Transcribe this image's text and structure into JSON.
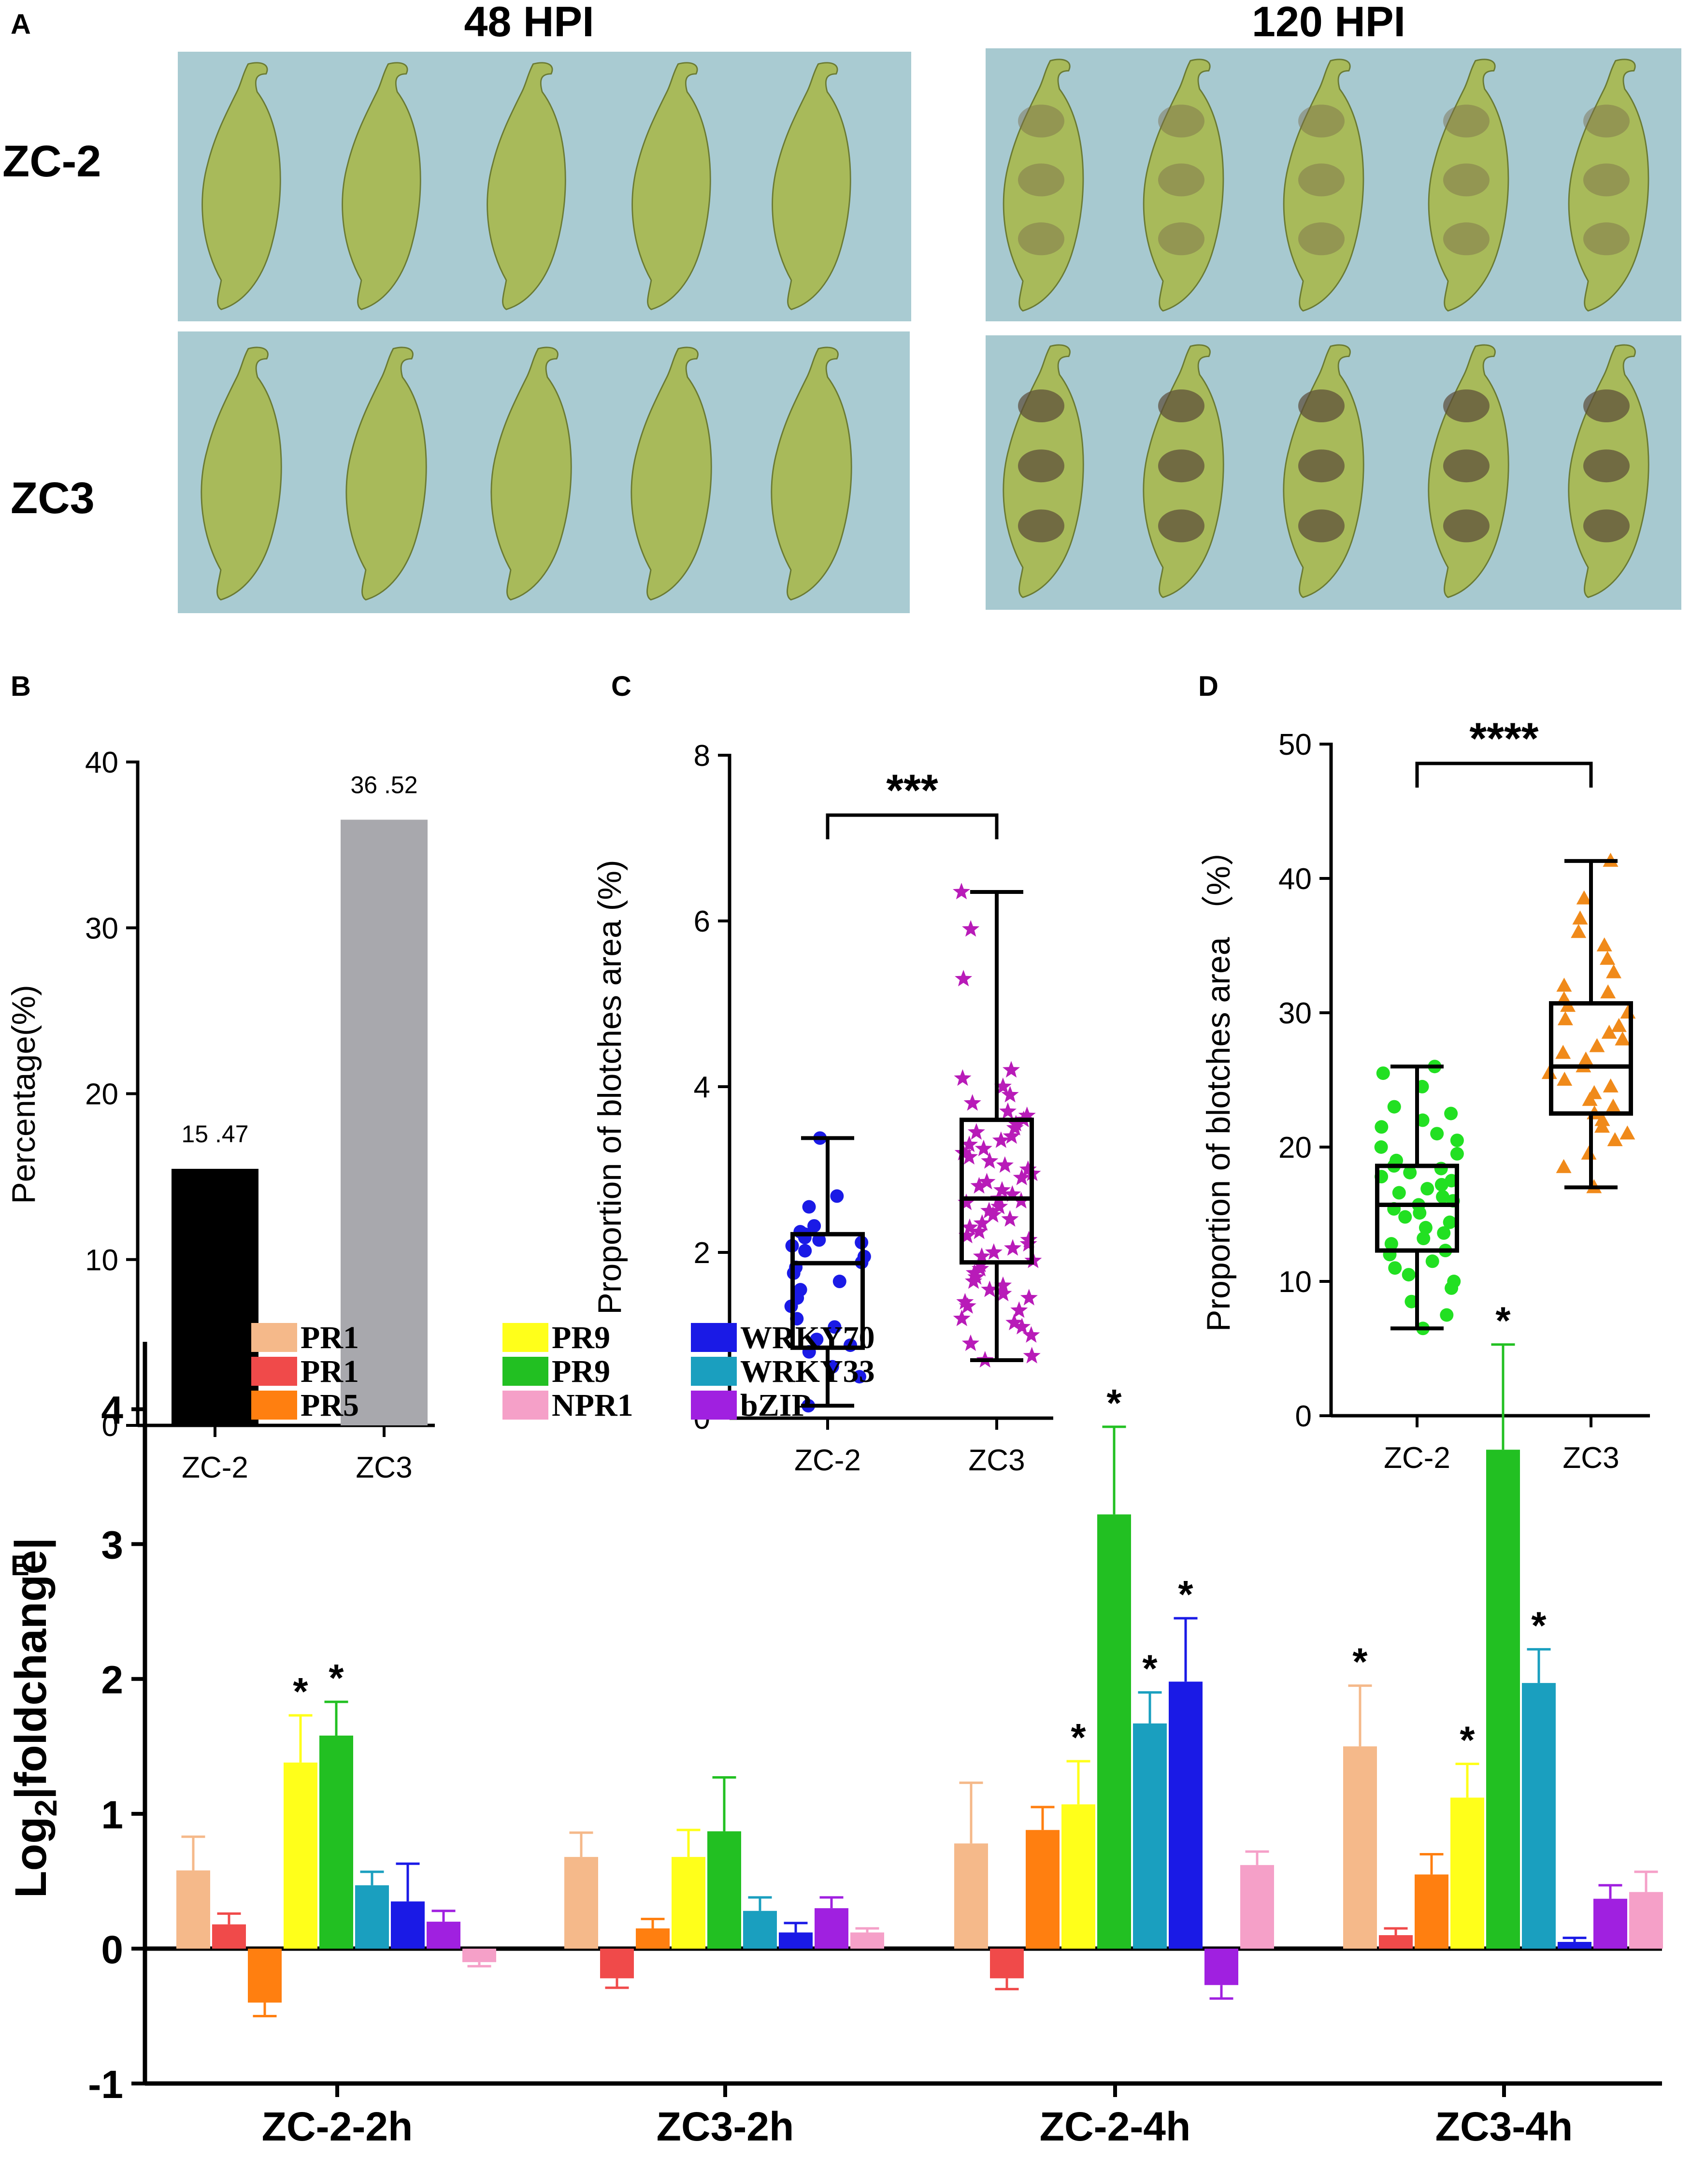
{
  "panel_a": {
    "label": "A",
    "col_titles": [
      "48 HPI",
      "120 HPI"
    ],
    "row_labels": [
      "ZC-2",
      "ZC3"
    ]
  },
  "chart_data": [
    {
      "panel": "B",
      "type": "bar",
      "categories": [
        "ZC-2",
        "ZC3"
      ],
      "values": [
        15.47,
        36.52
      ],
      "value_labels": [
        "15 .47",
        "36 .52"
      ],
      "colors": [
        "#000000",
        "#a8a8ad"
      ],
      "ylabel": "Percentage(%)",
      "ylim": [
        0,
        40
      ],
      "yticks": [
        0,
        10,
        20,
        30,
        40
      ]
    },
    {
      "panel": "C",
      "type": "scatter",
      "subtype": "box-whisker",
      "categories": [
        "ZC-2",
        "ZC3"
      ],
      "ylabel": "Proportion of blotches area (%)",
      "ylim": [
        0,
        8
      ],
      "yticks": [
        0,
        2,
        4,
        6,
        8
      ],
      "boxes": [
        {
          "name": "ZC-2",
          "min": 0.15,
          "q1": 0.85,
          "median": 1.87,
          "q3": 2.22,
          "max": 3.38,
          "color": "#1a1ae6",
          "marker": "circle",
          "points": [
            0.15,
            0.5,
            0.62,
            0.8,
            0.88,
            0.95,
            1.1,
            1.2,
            1.35,
            1.45,
            1.55,
            1.65,
            1.75,
            1.82,
            1.88,
            1.95,
            2.02,
            2.08,
            2.12,
            2.15,
            2.18,
            2.22,
            2.25,
            2.32,
            2.55,
            2.68,
            3.38
          ]
        },
        {
          "name": "ZC3",
          "min": 0.7,
          "q1": 1.88,
          "median": 2.65,
          "q3": 3.6,
          "max": 6.35,
          "color": "#b81bb8",
          "marker": "star",
          "points": [
            0.7,
            0.75,
            0.9,
            1.0,
            1.1,
            1.15,
            1.2,
            1.3,
            1.35,
            1.4,
            1.45,
            1.5,
            1.55,
            1.6,
            1.65,
            1.7,
            1.75,
            1.8,
            1.85,
            1.9,
            1.95,
            2.0,
            2.05,
            2.1,
            2.15,
            2.2,
            2.25,
            2.3,
            2.35,
            2.4,
            2.45,
            2.5,
            2.55,
            2.6,
            2.62,
            2.65,
            2.7,
            2.75,
            2.8,
            2.85,
            2.9,
            2.95,
            3.0,
            3.05,
            3.1,
            3.15,
            3.2,
            3.25,
            3.3,
            3.35,
            3.4,
            3.45,
            3.5,
            3.55,
            3.6,
            3.65,
            3.7,
            3.8,
            3.9,
            4.0,
            4.1,
            4.2,
            5.3,
            5.9,
            6.35
          ]
        }
      ],
      "significance": "***"
    },
    {
      "panel": "D",
      "type": "scatter",
      "subtype": "box-whisker",
      "categories": [
        "ZC-2",
        "ZC3"
      ],
      "ylabel": "Proportion of blotches area （%）",
      "ylim": [
        0,
        50
      ],
      "yticks": [
        0,
        10,
        20,
        30,
        40,
        50
      ],
      "boxes": [
        {
          "name": "ZC-2",
          "min": 6.5,
          "q1": 12.3,
          "median": 15.7,
          "q3": 18.6,
          "max": 26.0,
          "color": "#22e022",
          "marker": "circle",
          "points": [
            6.5,
            7.5,
            8.5,
            9.5,
            10.0,
            10.5,
            11.0,
            11.5,
            12.0,
            12.3,
            12.8,
            13.2,
            13.6,
            14.0,
            14.4,
            14.8,
            15.1,
            15.4,
            15.7,
            16.0,
            16.3,
            16.6,
            16.9,
            17.2,
            17.5,
            17.8,
            18.1,
            18.4,
            18.6,
            19.0,
            19.5,
            20.0,
            20.5,
            21.0,
            21.5,
            22.0,
            22.5,
            23.0,
            24.5,
            25.5,
            26.0
          ]
        },
        {
          "name": "ZC3",
          "min": 17.0,
          "q1": 22.5,
          "median": 26.0,
          "q3": 30.7,
          "max": 41.3,
          "color": "#f08a1a",
          "marker": "triangle",
          "points": [
            17.0,
            18.5,
            19.5,
            20.5,
            21.0,
            21.5,
            22.0,
            22.5,
            23.0,
            23.5,
            24.0,
            24.5,
            25.0,
            25.5,
            26.0,
            26.5,
            27.0,
            27.5,
            28.0,
            28.5,
            29.0,
            29.5,
            30.0,
            30.5,
            31.0,
            31.5,
            32.0,
            33.0,
            34.0,
            35.0,
            36.0,
            37.0,
            38.5,
            41.3
          ]
        }
      ],
      "significance": "****"
    },
    {
      "panel": "E",
      "type": "bar",
      "categories": [
        "ZC-2-2h",
        "ZC3-2h",
        "ZC-2-4h",
        "ZC3-4h"
      ],
      "ylabel_main": "Log",
      "ylabel_sub": "2",
      "ylabel_rest": "|foldchange|",
      "ylim": [
        -1,
        4.5
      ],
      "yticks": [
        -1,
        0,
        1,
        2,
        3,
        4
      ],
      "series": [
        {
          "name": "PR1",
          "color": "#f5b98a",
          "values": [
            0.58,
            0.68,
            0.78,
            1.5
          ],
          "errors": [
            0.25,
            0.18,
            0.45,
            0.45
          ],
          "sig": [
            false,
            false,
            false,
            true
          ]
        },
        {
          "name": "PR1",
          "color": "#f04a4a",
          "values": [
            0.18,
            -0.22,
            -0.22,
            0.1
          ],
          "errors": [
            0.08,
            0.07,
            0.08,
            0.05
          ],
          "sig": [
            false,
            false,
            false,
            false
          ]
        },
        {
          "name": "PR5",
          "color": "#ff7f10",
          "values": [
            -0.4,
            0.15,
            0.88,
            0.55
          ],
          "errors": [
            0.1,
            0.07,
            0.17,
            0.15
          ],
          "sig": [
            false,
            false,
            false,
            false
          ]
        },
        {
          "name": "PR9",
          "color": "#ffff1a",
          "values": [
            1.38,
            0.68,
            1.07,
            1.12
          ],
          "errors": [
            0.35,
            0.2,
            0.32,
            0.25
          ],
          "sig": [
            true,
            false,
            true,
            true
          ]
        },
        {
          "name": "PR9",
          "color": "#22c022",
          "values": [
            1.58,
            0.87,
            3.22,
            3.7
          ],
          "errors": [
            0.25,
            0.4,
            0.65,
            0.78
          ],
          "sig": [
            true,
            false,
            true,
            true
          ]
        },
        {
          "name": "WRKY33",
          "color": "#1a9fbf",
          "values": [
            0.47,
            0.28,
            1.67,
            1.97
          ],
          "errors": [
            0.1,
            0.1,
            0.23,
            0.25
          ],
          "sig": [
            false,
            false,
            true,
            true
          ]
        },
        {
          "name": "WRKY70",
          "color": "#1a1ae6",
          "values": [
            0.35,
            0.12,
            1.98,
            0.05
          ],
          "errors": [
            0.28,
            0.07,
            0.47,
            0.03
          ],
          "sig": [
            false,
            false,
            true,
            false
          ]
        },
        {
          "name": "bZIP",
          "color": "#a020e0",
          "values": [
            0.2,
            0.3,
            -0.27,
            0.37
          ],
          "errors": [
            0.08,
            0.08,
            0.1,
            0.1
          ],
          "sig": [
            false,
            false,
            false,
            false
          ]
        },
        {
          "name": "NPR1",
          "color": "#f5a0c8",
          "values": [
            -0.1,
            0.12,
            0.62,
            0.42
          ],
          "errors": [
            0.03,
            0.03,
            0.1,
            0.15
          ],
          "sig": [
            false,
            false,
            false,
            false
          ]
        }
      ],
      "legend": [
        {
          "name": "PR1",
          "color": "#f5b98a"
        },
        {
          "name": "PR1",
          "color": "#f04a4a"
        },
        {
          "name": "PR5",
          "color": "#ff7f10"
        },
        {
          "name": "PR9",
          "color": "#ffff1a"
        },
        {
          "name": "PR9",
          "color": "#22c022"
        },
        {
          "name": "NPR1",
          "color": "#f5a0c8"
        },
        {
          "name": "WRKY70",
          "color": "#1a1ae6"
        },
        {
          "name": "WRKY33",
          "color": "#1a9fbf"
        },
        {
          "name": "bZIP",
          "color": "#a020e0"
        }
      ],
      "significance_marker": "*"
    }
  ],
  "panel_labels": [
    "A",
    "B",
    "C",
    "D",
    "E"
  ]
}
